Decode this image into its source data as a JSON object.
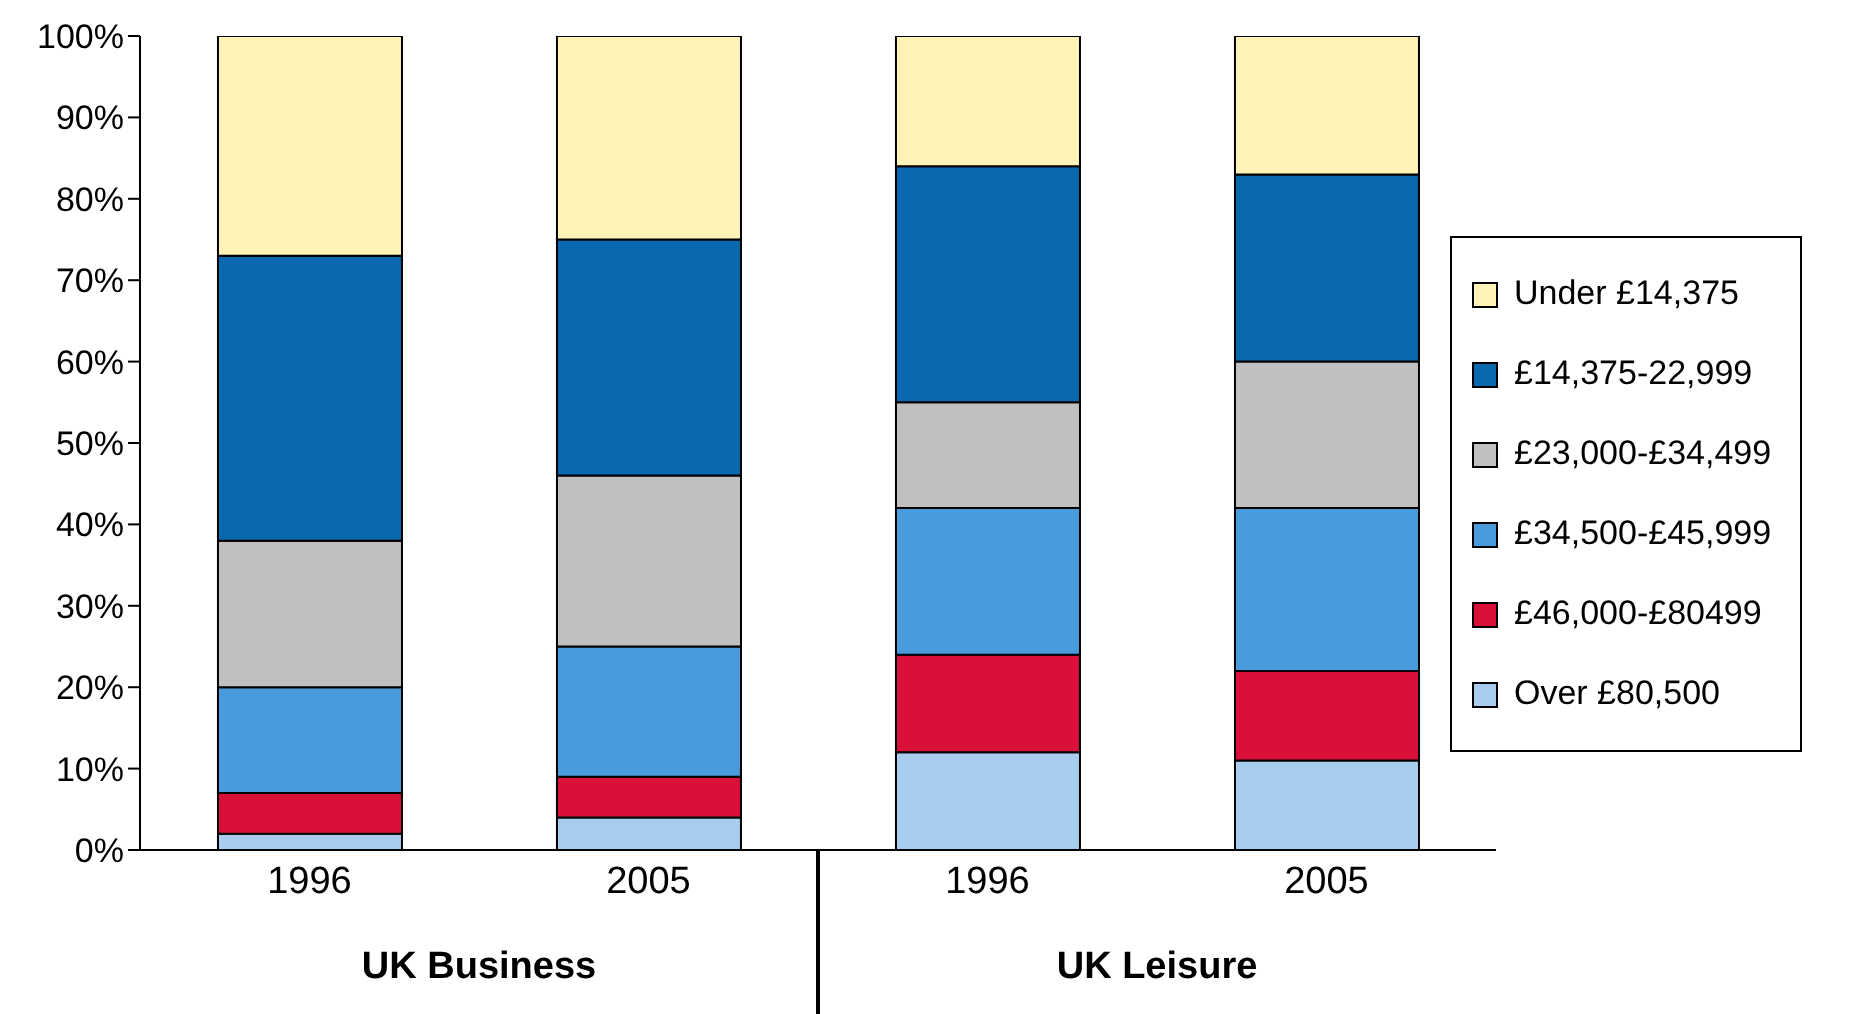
{
  "chart_data": {
    "type": "bar",
    "stacked": true,
    "categories": [
      "1996",
      "2005",
      "1996",
      "2005"
    ],
    "series": [
      {
        "name": "Over £80,500",
        "color": "#a8cdef",
        "values": [
          2,
          4,
          12,
          11
        ]
      },
      {
        "name": "£46,000-£80499",
        "color": "#d8103a",
        "values": [
          5,
          5,
          12,
          11
        ]
      },
      {
        "name": "£34,500-£45,999",
        "color": "#4a9bdc",
        "values": [
          13,
          16,
          18,
          20
        ]
      },
      {
        "name": "£23,000-£34,499",
        "color": "#c0c0c0",
        "values": [
          18,
          21,
          13,
          18
        ]
      },
      {
        "name": "£14,375-22,999",
        "color": "#0868b0",
        "values": [
          35,
          29,
          29,
          23
        ]
      },
      {
        "name": "Under £14,375",
        "color": "#fff3b8",
        "values": [
          27,
          25,
          16,
          17
        ]
      }
    ],
    "ylim": [
      0,
      100
    ],
    "yticks": [
      {
        "value": 0,
        "label": "0%"
      },
      {
        "value": 10,
        "label": "10%"
      },
      {
        "value": 20,
        "label": "20%"
      },
      {
        "value": 30,
        "label": "30%"
      },
      {
        "value": 40,
        "label": "40%"
      },
      {
        "value": 50,
        "label": "50%"
      },
      {
        "value": 60,
        "label": "60%"
      },
      {
        "value": 70,
        "label": "70%"
      },
      {
        "value": 80,
        "label": "80%"
      },
      {
        "value": 90,
        "label": "90%"
      },
      {
        "value": 100,
        "label": "100%"
      }
    ],
    "grid": false,
    "legend": "right",
    "annotations": [
      "UK Business",
      "UK Leisure"
    ]
  }
}
